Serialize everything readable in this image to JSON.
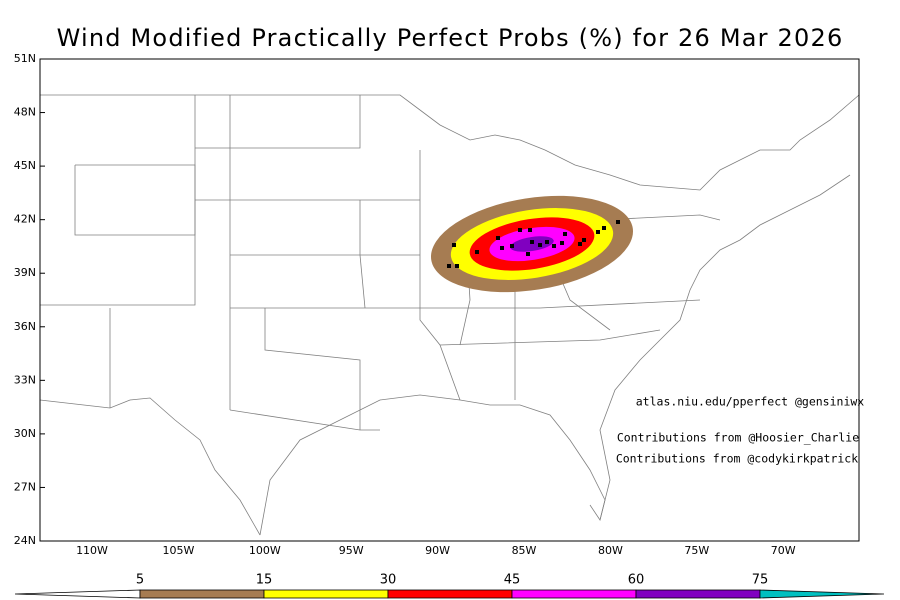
{
  "title": "Wind Modified Practically Perfect Probs (%) for 26 Mar 2026",
  "lat_labels": [
    "51N",
    "48N",
    "45N",
    "42N",
    "39N",
    "36N",
    "33N",
    "30N",
    "27N",
    "24N"
  ],
  "lon_labels": [
    "110W",
    "105W",
    "100W",
    "95W",
    "90W",
    "85W",
    "80W",
    "75W",
    "70W"
  ],
  "credits": [
    "atlas.niu.edu/pperfect @gensiniwx",
    "Contributions from @Hoosier_Charlie",
    "Contributions from @codykirkpatrick"
  ],
  "colorbar": {
    "levels": [
      5,
      15,
      30,
      45,
      60,
      75
    ],
    "colors": [
      "#a67c52",
      "#ffff00",
      "#ff0000",
      "#ff00ff",
      "#8000c0",
      "#00c0c0"
    ]
  }
}
